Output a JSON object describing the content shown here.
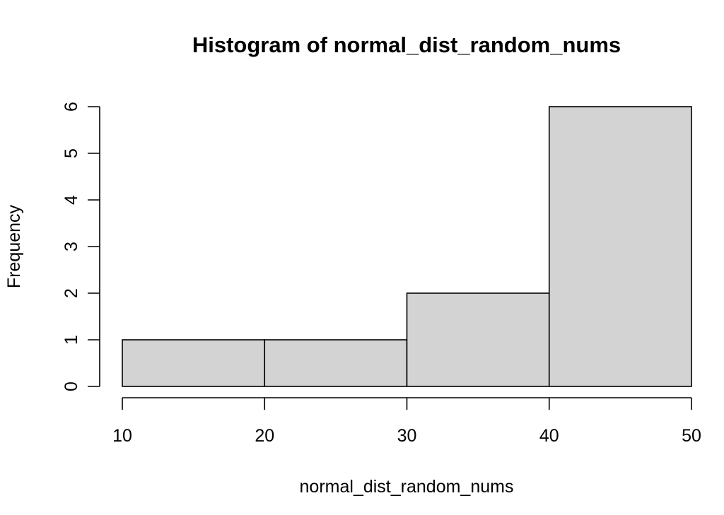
{
  "chart_data": {
    "type": "bar",
    "title": "Histogram of normal_dist_random_nums",
    "xlabel": "normal_dist_random_nums",
    "ylabel": "Frequency",
    "bins": [
      {
        "start": 10,
        "end": 20,
        "count": 1
      },
      {
        "start": 20,
        "end": 30,
        "count": 1
      },
      {
        "start": 30,
        "end": 40,
        "count": 2
      },
      {
        "start": 40,
        "end": 50,
        "count": 6
      }
    ],
    "x_ticks": [
      "10",
      "20",
      "30",
      "40",
      "50"
    ],
    "y_ticks": [
      "0",
      "1",
      "2",
      "3",
      "4",
      "5",
      "6"
    ],
    "xlim": [
      10,
      50
    ],
    "ylim": [
      0,
      6
    ],
    "grid": false,
    "bar_color": "#d3d3d3",
    "border_color": "#000000"
  }
}
